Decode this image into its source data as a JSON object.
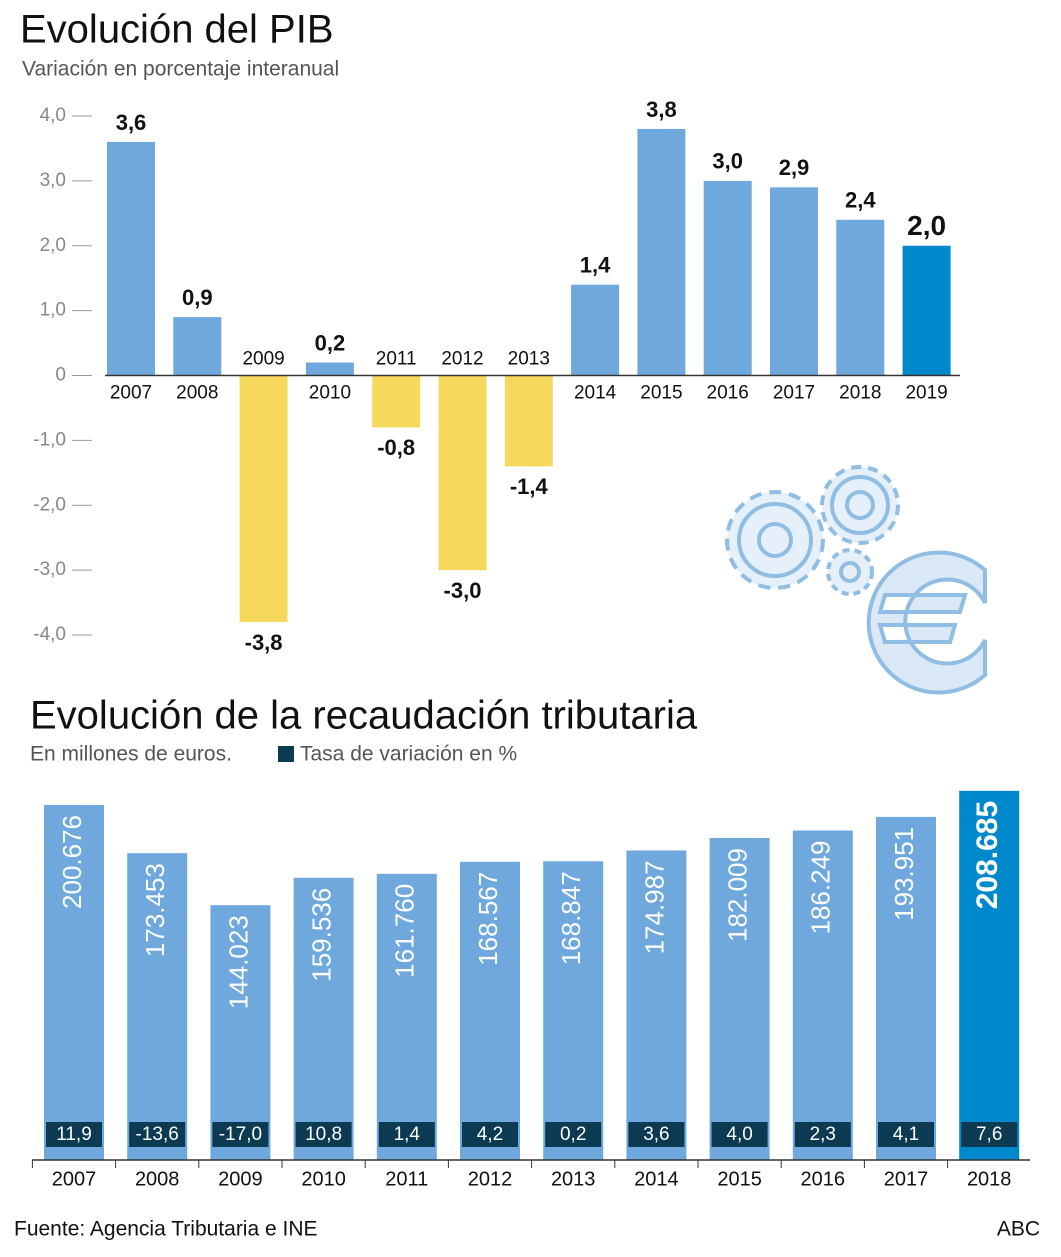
{
  "chart_data": [
    {
      "type": "bar",
      "title": "Evolución del PIB",
      "subtitle": "Variación en porcentaje interanual",
      "categories": [
        "2007",
        "2008",
        "2009",
        "2010",
        "2011",
        "2012",
        "2013",
        "2014",
        "2015",
        "2016",
        "2017",
        "2018",
        "2019"
      ],
      "values": [
        3.6,
        0.9,
        -3.8,
        0.2,
        -0.8,
        -3.0,
        -1.4,
        1.4,
        3.8,
        3.0,
        2.9,
        2.4,
        2.0
      ],
      "value_labels": [
        "3,6",
        "0,9",
        "-3,8",
        "0,2",
        "-0,8",
        "-3,0",
        "-1,4",
        "1,4",
        "3,8",
        "3,0",
        "2,9",
        "2,4",
        "2,0"
      ],
      "colors": [
        "#6fa8dc",
        "#6fa8dc",
        "#f6d95c",
        "#6fa8dc",
        "#f6d95c",
        "#f6d95c",
        "#f6d95c",
        "#6fa8dc",
        "#6fa8dc",
        "#6fa8dc",
        "#6fa8dc",
        "#6fa8dc",
        "#0088cc"
      ],
      "ylim": [
        -4,
        4
      ],
      "yticks": [
        {
          "value": 4,
          "label": "4,0"
        },
        {
          "value": 3,
          "label": "3,0"
        },
        {
          "value": 2,
          "label": "2,0"
        },
        {
          "value": 1,
          "label": "1,0"
        },
        0,
        {
          "value": -1,
          "label": "-1,0"
        },
        {
          "value": -2,
          "label": "-2,0"
        },
        {
          "value": -3,
          "label": "-3,0"
        },
        {
          "value": -4,
          "label": "-4,0"
        }
      ]
    },
    {
      "type": "bar",
      "title": "Evolución de la recaudación tributaria",
      "subtitle": "En millones de euros.",
      "categories": [
        "2007",
        "2008",
        "2009",
        "2010",
        "2011",
        "2012",
        "2013",
        "2014",
        "2015",
        "2016",
        "2017",
        "2018"
      ],
      "values": [
        200676,
        173453,
        144023,
        159536,
        161760,
        168567,
        168847,
        174987,
        182009,
        186249,
        193951,
        208685
      ],
      "value_labels": [
        "200.676",
        "173.453",
        "144.023",
        "159.536",
        "161.760",
        "168.567",
        "168.847",
        "174.987",
        "182.009",
        "186.249",
        "193.951",
        "208.685"
      ],
      "colors": [
        "#6fa8dc",
        "#6fa8dc",
        "#6fa8dc",
        "#6fa8dc",
        "#6fa8dc",
        "#6fa8dc",
        "#6fa8dc",
        "#6fa8dc",
        "#6fa8dc",
        "#6fa8dc",
        "#6fa8dc",
        "#0088cc"
      ],
      "ylim": [
        0,
        210000
      ],
      "rate": {
        "name": "Tasa de variación en %",
        "color": "#0b3a52",
        "values": [
          11.9,
          -13.6,
          -17.0,
          10.8,
          1.4,
          4.2,
          0.2,
          3.6,
          4.0,
          2.3,
          4.1,
          7.6
        ],
        "value_labels": [
          "11,9",
          "-13,6",
          "-17,0",
          "10,8",
          "1,4",
          "4,2",
          "0,2",
          "3,6",
          "4,0",
          "2,3",
          "4,1",
          "7,6"
        ]
      }
    }
  ],
  "footer": {
    "source": "Fuente: Agencia Tributaria e INE",
    "brand": "ABC"
  }
}
